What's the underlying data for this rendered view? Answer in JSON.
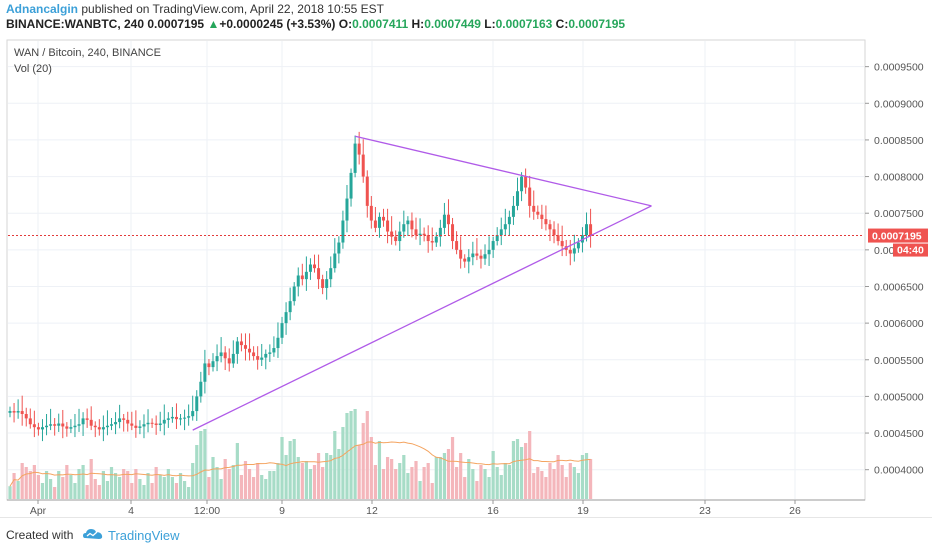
{
  "header": {
    "author": "Adnancalgin",
    "published_text": "published on TradingView.com, April 22, 2018 10:55 EST",
    "symbol_line": "BINANCE:WANBTC, 240",
    "last": "0.0007195",
    "change_arrow": "▲",
    "change": "+0.0000245 (+3.53%)",
    "open_label": "O:",
    "open": "0.0007411",
    "high_label": "H:",
    "high": "0.0007449",
    "low_label": "L:",
    "low": "0.0007163",
    "close_label": "C:",
    "close": "0.0007195"
  },
  "legend": {
    "title": "WAN / Bitcoin, 240, BINANCE",
    "vol": "Vol (20)"
  },
  "footer": {
    "created_with": "Created with",
    "brand": "TradingView"
  },
  "colors": {
    "up": "#26a69a",
    "down": "#ef5350",
    "vol_up": "#a7dcc7",
    "vol_down": "#f4b6bb",
    "trendline": "#b05be8",
    "price_line": "#e23b3b",
    "vol_ma": "#f4a460",
    "grid": "#eef1f6"
  },
  "chart_data": {
    "type": "candlestick",
    "y_axis": {
      "ticks": [
        "0.0009500",
        "0.0009000",
        "0.0008500",
        "0.0008000",
        "0.0007500",
        "0.0007000",
        "0.0006500",
        "0.0006000",
        "0.0005500",
        "0.0005000",
        "0.0004500",
        "0.0004000"
      ],
      "min": 0.00036,
      "max": 0.000985
    },
    "x_axis": {
      "ticks": [
        "Apr",
        "4",
        "12:00",
        "9",
        "12",
        "16",
        "19",
        "23",
        "26"
      ]
    },
    "last_price": "0.0007195",
    "countdown": "04:40",
    "series_close": [
      0.00048,
      0.000478,
      0.00048,
      0.000476,
      0.00047,
      0.000462,
      0.000458,
      0.000455,
      0.000458,
      0.00046,
      0.000462,
      0.00046,
      0.000463,
      0.000459,
      0.000456,
      0.000458,
      0.00046,
      0.000462,
      0.00047,
      0.000468,
      0.00046,
      0.000458,
      0.000455,
      0.000458,
      0.00046,
      0.000462,
      0.000465,
      0.00047,
      0.000468,
      0.000463,
      0.00046,
      0.000457,
      0.000459,
      0.000462,
      0.000464,
      0.000463,
      0.000461,
      0.000463,
      0.000468,
      0.00047,
      0.000472,
      0.000469,
      0.00047,
      0.000471,
      0.000473,
      0.00048,
      0.0005,
      0.00052,
      0.000545,
      0.00054,
      0.000548,
      0.000555,
      0.00056,
      0.000552,
      0.000545,
      0.000558,
      0.000575,
      0.00057,
      0.000565,
      0.00056,
      0.000555,
      0.00055,
      0.000553,
      0.000558,
      0.00056,
      0.000566,
      0.00058,
      0.0006,
      0.000615,
      0.00063,
      0.00065,
      0.000665,
      0.00066,
      0.00067,
      0.00068,
      0.000675,
      0.00066,
      0.000648,
      0.00066,
      0.000675,
      0.000695,
      0.00071,
      0.00074,
      0.00077,
      0.000805,
      0.000845,
      0.00083,
      0.0008,
      0.00076,
      0.00074,
      0.00073,
      0.000745,
      0.00074,
      0.000725,
      0.000718,
      0.000712,
      0.000725,
      0.000735,
      0.00074,
      0.000728,
      0.00072,
      0.000722,
      0.00072,
      0.000712,
      0.00071,
      0.000718,
      0.00073,
      0.000748,
      0.000735,
      0.000712,
      0.0007,
      0.000688,
      0.000684,
      0.00069,
      0.000695,
      0.000692,
      0.000688,
      0.000694,
      0.0007,
      0.000712,
      0.00072,
      0.000728,
      0.000735,
      0.000745,
      0.00076,
      0.00078,
      0.0008,
      0.000785,
      0.00076,
      0.000752,
      0.000748,
      0.000742,
      0.000735,
      0.000728,
      0.00072,
      0.000712,
      0.000705,
      0.0007,
      0.000695,
      0.000702,
      0.00071,
      0.00072,
      0.000735,
      0.000719
    ],
    "trendlines": [
      {
        "from_index": 45,
        "from_value": 0.000454,
        "to_index": 158,
        "to_value": 0.00076
      },
      {
        "from_index": 85,
        "from_value": 0.000855,
        "to_index": 158,
        "to_value": 0.00076
      }
    ]
  }
}
